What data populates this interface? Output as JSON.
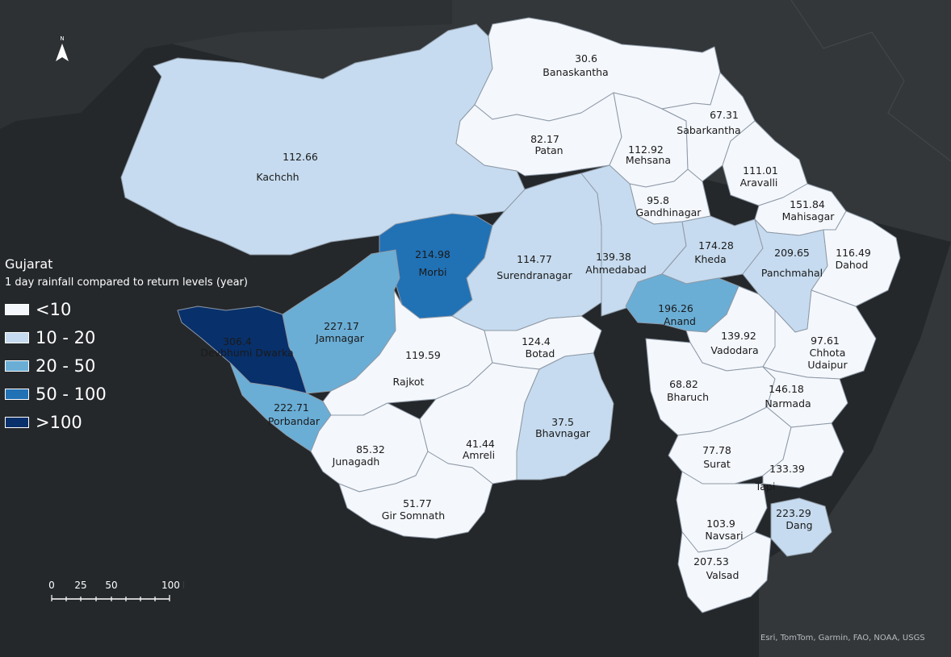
{
  "legend": {
    "title": "Gujarat",
    "subtitle": "1 day rainfall compared to return levels (year)",
    "classes": [
      {
        "label": "<10",
        "color": "#f4f7fc"
      },
      {
        "label": "10 - 20",
        "color": "#c6dbef"
      },
      {
        "label": "20 - 50",
        "color": "#6aaed6"
      },
      {
        "label": "50 - 100",
        "color": "#2171b5"
      },
      {
        "label": ">100",
        "color": "#08306b"
      }
    ]
  },
  "districts": [
    {
      "name": "Kachchh",
      "value": "112.66",
      "class": 1
    },
    {
      "name": "Banaskantha",
      "value": "30.6",
      "class": 0
    },
    {
      "name": "Patan",
      "value": "82.17",
      "class": 0
    },
    {
      "name": "Mehsana",
      "value": "112.92",
      "class": 0
    },
    {
      "name": "Sabarkantha",
      "value": "67.31",
      "class": 0
    },
    {
      "name": "Aravalli",
      "value": "111.01",
      "class": 0
    },
    {
      "name": "Gandhinagar",
      "value": "95.8",
      "class": 0
    },
    {
      "name": "Mahisagar",
      "value": "151.84",
      "class": 0
    },
    {
      "name": "Morbi",
      "value": "214.98",
      "class": 3
    },
    {
      "name": "Surendranagar",
      "value": "114.77",
      "class": 1
    },
    {
      "name": "Ahmedabad",
      "value": "139.38",
      "class": 1
    },
    {
      "name": "Kheda",
      "value": "174.28",
      "class": 1
    },
    {
      "name": "Panchmahal",
      "value": "209.65",
      "class": 1
    },
    {
      "name": "Dahod",
      "value": "116.49",
      "class": 0
    },
    {
      "name": "Anand",
      "value": "196.26",
      "class": 2
    },
    {
      "name": "Devbhumi Dwarka",
      "value": "306.4",
      "class": 4
    },
    {
      "name": "Jamnagar",
      "value": "227.17",
      "class": 2
    },
    {
      "name": "Rajkot",
      "value": "119.59",
      "class": 0
    },
    {
      "name": "Botad",
      "value": "124.4",
      "class": 0
    },
    {
      "name": "Vadodara",
      "value": "139.92",
      "class": 0
    },
    {
      "name": "Chhota Udaipur",
      "value": "97.61",
      "class": 0
    },
    {
      "name": "Porbandar",
      "value": "222.71",
      "class": 2
    },
    {
      "name": "Bhavnagar",
      "value": "37.5",
      "class": 1
    },
    {
      "name": "Bharuch",
      "value": "68.82",
      "class": 0
    },
    {
      "name": "Narmada",
      "value": "146.18",
      "class": 0
    },
    {
      "name": "Junagadh",
      "value": "85.32",
      "class": 0
    },
    {
      "name": "Amreli",
      "value": "41.44",
      "class": 0
    },
    {
      "name": "Surat",
      "value": "77.78",
      "class": 0
    },
    {
      "name": "Tapi",
      "value": "133.39",
      "class": 0
    },
    {
      "name": "Gir Somnath",
      "value": "51.77",
      "class": 0
    },
    {
      "name": "Navsari",
      "value": "103.9",
      "class": 0
    },
    {
      "name": "Dang",
      "value": "223.29",
      "class": 1
    },
    {
      "name": "Valsad",
      "value": "207.53",
      "class": 0
    }
  ],
  "scalebar": {
    "ticks": [
      "0",
      "25",
      "50",
      "100 Kilometers"
    ]
  },
  "north_arrow": {
    "label": "N",
    "icon": "north-arrow-icon"
  },
  "attribution": "Esri, TomTom, Garmin, FAO, NOAA, USGS"
}
